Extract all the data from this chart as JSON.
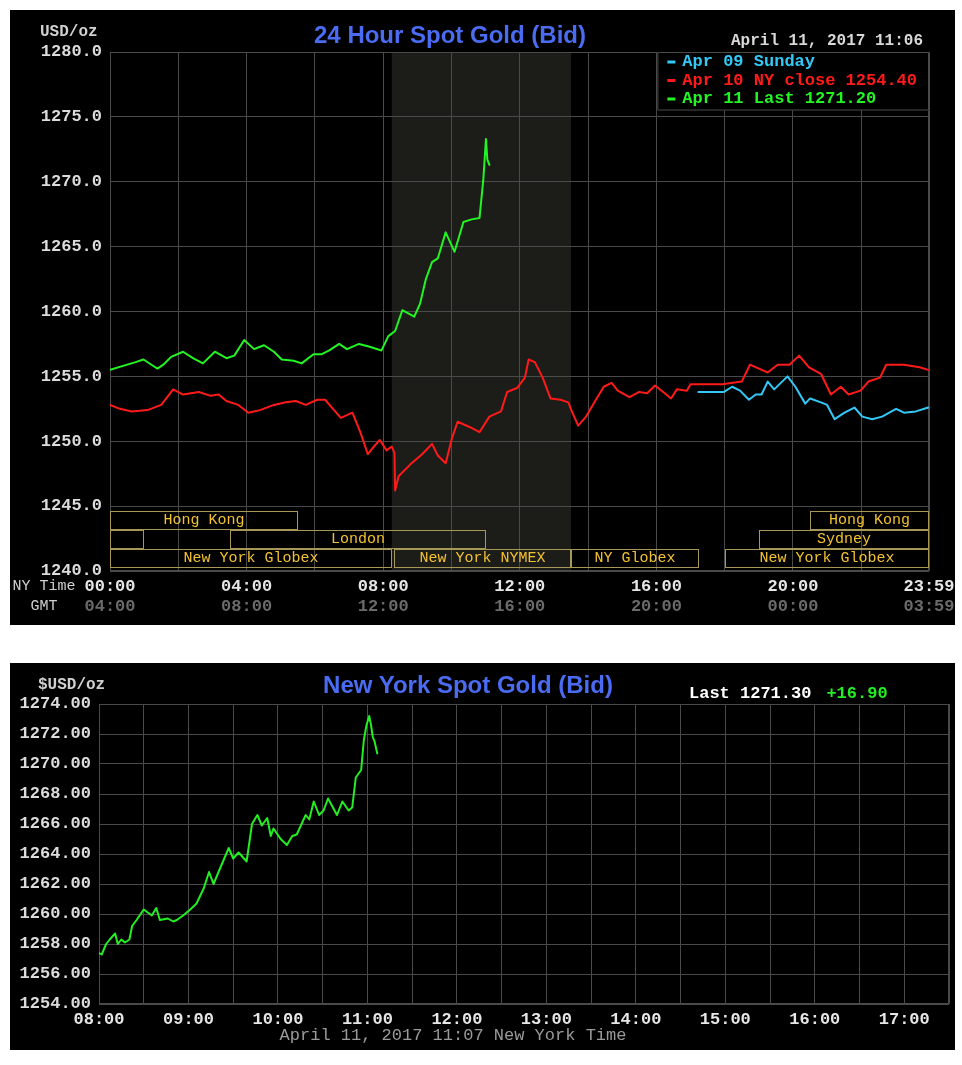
{
  "chart_data": [
    {
      "type": "line",
      "title": "24 Hour Spot Gold (Bid)",
      "ylabel": "USD/oz",
      "xlabel": "NY Time",
      "x2label": "GMT",
      "xlim": [
        0,
        23.983333
      ],
      "xticks": [
        {
          "value": 0,
          "label": "00:00"
        },
        {
          "value": 2,
          "label": null
        },
        {
          "value": 4,
          "label": "04:00"
        },
        {
          "value": 6,
          "label": null
        },
        {
          "value": 8,
          "label": "08:00"
        },
        {
          "value": 10,
          "label": null
        },
        {
          "value": 12,
          "label": "12:00"
        },
        {
          "value": 14,
          "label": null
        },
        {
          "value": 16,
          "label": "16:00"
        },
        {
          "value": 18,
          "label": null
        },
        {
          "value": 20,
          "label": "20:00"
        },
        {
          "value": 22,
          "label": null
        },
        {
          "value": 23.983333,
          "label": "23:59"
        }
      ],
      "x2lim": [
        "2017-04-11T04:00",
        "2017-04-12T03:59"
      ],
      "x2ticks": [
        {
          "value": "2017-04-11T04:00",
          "label": "04:00"
        },
        {
          "value": "2017-04-11T08:00",
          "label": "08:00"
        },
        {
          "value": "2017-04-11T12:00",
          "label": "12:00"
        },
        {
          "value": "2017-04-11T16:00",
          "label": "16:00"
        },
        {
          "value": "2017-04-11T20:00",
          "label": "20:00"
        },
        {
          "value": "2017-04-12T00:00",
          "label": "00:00"
        },
        {
          "value": "2017-04-12T03:59",
          "label": "03:59"
        }
      ],
      "ylim": [
        1240,
        1280
      ],
      "yticks": [
        {
          "value": 1240,
          "label": "1240.0"
        },
        {
          "value": 1245,
          "label": "1245.0"
        },
        {
          "value": 1250,
          "label": "1250.0"
        },
        {
          "value": 1255,
          "label": "1255.0"
        },
        {
          "value": 1260,
          "label": "1260.0"
        },
        {
          "value": 1265,
          "label": "1265.0"
        },
        {
          "value": 1270,
          "label": "1270.0"
        },
        {
          "value": 1275,
          "label": "1275.0"
        },
        {
          "value": 1280,
          "label": "1280.0"
        }
      ],
      "grid": true,
      "legend": "top right",
      "annotations": [
        "April 11, 2017 11:06",
        "Hong Kong",
        "Hong Kong",
        "London",
        "Sydney",
        "New York Globex",
        "New York NYMEX",
        "NY Globex",
        "New York Globex"
      ],
      "bands": [
        {
          "axis": "x",
          "from": 8.25,
          "to": 13.5,
          "color": "#1c1c19"
        }
      ],
      "series": [
        {
          "name": "Apr 09 Sunday",
          "color": "#33c8f5",
          "x": [
            17.23,
            17.98,
            18.22,
            18.45,
            18.71,
            18.91,
            19.08,
            19.26,
            19.45,
            19.84,
            20.07,
            20.36,
            20.5,
            20.82,
            21.0,
            21.22,
            21.51,
            21.8,
            22.03,
            22.32,
            22.61,
            23.02,
            23.25,
            23.6,
            23.96
          ],
          "values": [
            1253.8,
            1253.8,
            1254.2,
            1253.9,
            1253.2,
            1253.6,
            1253.6,
            1254.6,
            1254.0,
            1255.0,
            1254.2,
            1252.9,
            1253.3,
            1253.0,
            1252.8,
            1251.7,
            1252.2,
            1252.6,
            1251.9,
            1251.7,
            1251.9,
            1252.5,
            1252.2,
            1252.3,
            1252.6
          ]
        },
        {
          "name": "Apr 10 NY close 1254.40",
          "color": "#ff1a1a",
          "x": [
            0,
            0.29,
            0.64,
            1.1,
            1.5,
            1.85,
            2.14,
            2.6,
            2.95,
            3.18,
            3.41,
            3.76,
            4.05,
            4.39,
            4.8,
            5.15,
            5.44,
            5.73,
            6.07,
            6.3,
            6.53,
            6.76,
            7.1,
            7.33,
            7.55,
            7.7,
            7.9,
            8.1,
            8.25,
            8.33,
            8.35,
            8.45,
            8.79,
            9.14,
            9.43,
            9.6,
            9.83,
            10.01,
            10.18,
            10.53,
            10.82,
            11.11,
            11.45,
            11.63,
            11.92,
            12.15,
            12.26,
            12.44,
            12.67,
            12.9,
            13.19,
            13.42,
            13.54,
            13.71,
            13.94,
            14.23,
            14.46,
            14.69,
            14.87,
            15.21,
            15.5,
            15.73,
            15.96,
            16.2,
            16.43,
            16.6,
            16.89,
            17.0,
            17.93,
            18.5,
            18.74,
            19.26,
            19.55,
            19.9,
            20.18,
            20.47,
            20.82,
            21.11,
            21.4,
            21.63,
            21.98,
            22.21,
            22.55,
            22.73,
            23.25,
            23.71,
            23.96
          ],
          "values": [
            1252.8,
            1252.5,
            1252.3,
            1252.4,
            1252.8,
            1254.0,
            1253.6,
            1253.8,
            1253.5,
            1253.6,
            1253.1,
            1252.8,
            1252.2,
            1252.4,
            1252.8,
            1253.0,
            1253.1,
            1252.8,
            1253.2,
            1253.2,
            1252.5,
            1251.8,
            1252.2,
            1250.7,
            1249.0,
            1249.5,
            1250.1,
            1249.3,
            1249.6,
            1249.1,
            1246.2,
            1247.3,
            1248.2,
            1249.0,
            1249.8,
            1248.9,
            1248.3,
            1250.2,
            1251.5,
            1251.1,
            1250.7,
            1251.9,
            1252.3,
            1253.8,
            1254.1,
            1254.9,
            1256.3,
            1256.1,
            1254.9,
            1253.3,
            1253.2,
            1253.0,
            1252.2,
            1251.2,
            1251.9,
            1253.2,
            1254.2,
            1254.5,
            1253.9,
            1253.4,
            1253.8,
            1253.7,
            1254.3,
            1253.8,
            1253.3,
            1254.0,
            1253.9,
            1254.4,
            1254.4,
            1254.6,
            1255.9,
            1255.3,
            1255.9,
            1255.9,
            1256.6,
            1255.7,
            1255.2,
            1253.6,
            1254.2,
            1253.6,
            1253.9,
            1254.6,
            1254.9,
            1255.9,
            1255.9,
            1255.7,
            1255.5
          ]
        },
        {
          "name": "Apr 11 Last 1271.20",
          "color": "#22f522",
          "x": [
            0,
            0.75,
            0.98,
            1.27,
            1.39,
            1.56,
            1.79,
            2.14,
            2.43,
            2.72,
            3.07,
            3.41,
            3.64,
            3.93,
            4.22,
            4.51,
            4.8,
            5.03,
            5.38,
            5.61,
            5.96,
            6.19,
            6.42,
            6.71,
            6.94,
            7.29,
            7.58,
            7.95,
            8.15,
            8.35,
            8.56,
            8.91,
            9.08,
            9.25,
            9.43,
            9.6,
            9.83,
            10.09,
            10.35,
            10.59,
            10.82,
            10.93,
            11.01,
            11.05,
            11.11
          ],
          "values": [
            1255.5,
            1256.1,
            1256.3,
            1255.8,
            1255.6,
            1255.9,
            1256.5,
            1256.9,
            1256.4,
            1256.0,
            1256.9,
            1256.4,
            1256.6,
            1257.8,
            1257.1,
            1257.4,
            1256.9,
            1256.3,
            1256.2,
            1256.0,
            1256.7,
            1256.7,
            1257.0,
            1257.5,
            1257.1,
            1257.5,
            1257.3,
            1257.0,
            1258.1,
            1258.5,
            1260.1,
            1259.6,
            1260.6,
            1262.5,
            1263.8,
            1264.1,
            1266.1,
            1264.6,
            1266.9,
            1267.1,
            1267.2,
            1270.1,
            1273.3,
            1271.7,
            1271.3
          ]
        }
      ]
    },
    {
      "type": "line",
      "title": "New York Spot Gold (Bid)",
      "ylabel": "$USD/oz",
      "xlim": [
        8,
        17.5
      ],
      "xticks": [
        {
          "value": 8,
          "label": "08:00"
        },
        {
          "value": 8.5,
          "label": null
        },
        {
          "value": 9,
          "label": "09:00"
        },
        {
          "value": 9.5,
          "label": null
        },
        {
          "value": 10,
          "label": "10:00"
        },
        {
          "value": 10.5,
          "label": null
        },
        {
          "value": 11,
          "label": "11:00"
        },
        {
          "value": 11.5,
          "label": null
        },
        {
          "value": 12,
          "label": "12:00"
        },
        {
          "value": 12.5,
          "label": null
        },
        {
          "value": 13,
          "label": "13:00"
        },
        {
          "value": 13.5,
          "label": null
        },
        {
          "value": 14,
          "label": "14:00"
        },
        {
          "value": 14.5,
          "label": null
        },
        {
          "value": 15,
          "label": "15:00"
        },
        {
          "value": 15.5,
          "label": null
        },
        {
          "value": 16,
          "label": "16:00"
        },
        {
          "value": 16.5,
          "label": null
        },
        {
          "value": 17,
          "label": "17:00"
        },
        {
          "value": 17.5,
          "label": null
        }
      ],
      "ylim": [
        1254,
        1274
      ],
      "yticks": [
        {
          "value": 1254,
          "label": "1254.00"
        },
        {
          "value": 1256,
          "label": "1256.00"
        },
        {
          "value": 1258,
          "label": "1258.00"
        },
        {
          "value": 1260,
          "label": "1260.00"
        },
        {
          "value": 1262,
          "label": "1262.00"
        },
        {
          "value": 1264,
          "label": "1264.00"
        },
        {
          "value": 1266,
          "label": "1266.00"
        },
        {
          "value": 1268,
          "label": "1268.00"
        },
        {
          "value": 1270,
          "label": "1270.00"
        },
        {
          "value": 1272,
          "label": "1272.00"
        },
        {
          "value": 1274,
          "label": "1274.00"
        }
      ],
      "grid": true,
      "annotations": [
        "Last 1271.30",
        "+16.90",
        "April 11, 2017 11:07 New York Time"
      ],
      "series": [
        {
          "color": "#22ee22",
          "x": [
            8.0,
            8.03,
            8.08,
            8.12,
            8.18,
            8.21,
            8.25,
            8.29,
            8.34,
            8.37,
            8.42,
            8.5,
            8.59,
            8.64,
            8.68,
            8.77,
            8.83,
            8.87,
            8.94,
            9.02,
            9.09,
            9.17,
            9.23,
            9.28,
            9.35,
            9.45,
            9.5,
            9.56,
            9.65,
            9.71,
            9.77,
            9.82,
            9.88,
            9.92,
            9.95,
            10.03,
            10.1,
            10.16,
            10.21,
            10.31,
            10.35,
            10.4,
            10.46,
            10.51,
            10.56,
            10.66,
            10.72,
            10.79,
            10.83,
            10.87,
            10.93,
            10.96,
            10.99,
            11.02,
            11.04,
            11.06,
            11.08,
            11.11
          ],
          "values": [
            1257.4,
            1257.3,
            1258.0,
            1258.3,
            1258.7,
            1258.0,
            1258.3,
            1258.1,
            1258.3,
            1259.2,
            1259.6,
            1260.3,
            1259.9,
            1260.4,
            1259.6,
            1259.7,
            1259.5,
            1259.6,
            1259.9,
            1260.3,
            1260.7,
            1261.7,
            1262.8,
            1262.0,
            1263.0,
            1264.4,
            1263.7,
            1264.1,
            1263.5,
            1266.0,
            1266.6,
            1265.9,
            1266.4,
            1265.2,
            1265.7,
            1265.0,
            1264.6,
            1265.2,
            1265.3,
            1266.6,
            1266.3,
            1267.5,
            1266.6,
            1266.9,
            1267.7,
            1266.6,
            1267.5,
            1266.9,
            1267.1,
            1269.1,
            1269.6,
            1271.6,
            1272.6,
            1273.2,
            1272.6,
            1271.8,
            1271.5,
            1270.7
          ]
        }
      ]
    }
  ]
}
